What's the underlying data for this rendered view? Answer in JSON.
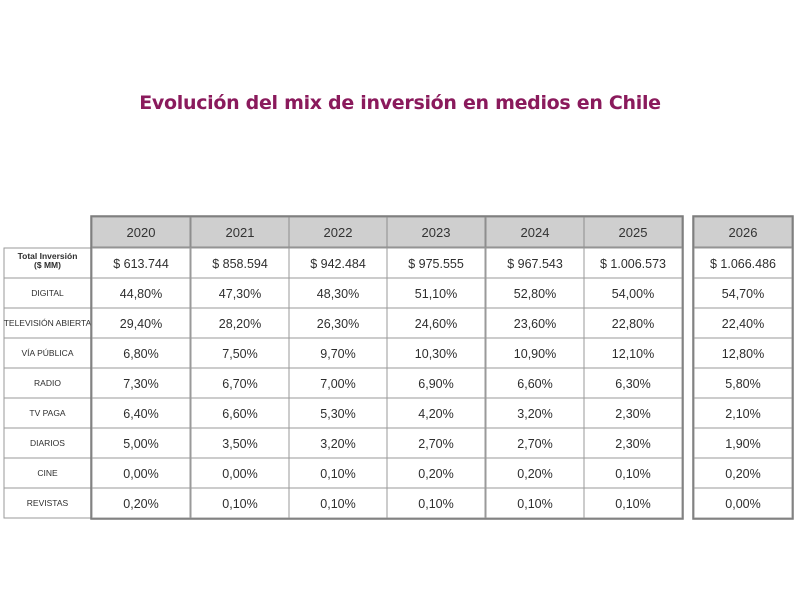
{
  "title": "Evolución del mix de inversión en medios en Chile",
  "chart_data": {
    "type": "table",
    "title": "Evolución del mix de inversión en medios en Chile",
    "columns": [
      "2020",
      "2021",
      "2022",
      "2023",
      "2024",
      "2025",
      "2026"
    ],
    "total_row": {
      "label_lines": [
        "Total Inversión",
        "($ MM)"
      ],
      "values": [
        "$ 613.744",
        "$ 858.594",
        "$ 942.484",
        "$ 975.555",
        "$ 967.543",
        "$ 1.006.573",
        "$ 1.066.486"
      ]
    },
    "rows": [
      {
        "label": "DIGITAL",
        "values": [
          "44,80%",
          "47,30%",
          "48,30%",
          "51,10%",
          "52,80%",
          "54,00%",
          "54,70%"
        ]
      },
      {
        "label": "TELEVISIÓN ABIERTA",
        "values": [
          "29,40%",
          "28,20%",
          "26,30%",
          "24,60%",
          "23,60%",
          "22,80%",
          "22,40%"
        ]
      },
      {
        "label": "VÍA PÚBLICA",
        "values": [
          "6,80%",
          "7,50%",
          "9,70%",
          "10,30%",
          "10,90%",
          "12,10%",
          "12,80%"
        ]
      },
      {
        "label": "RADIO",
        "values": [
          "7,30%",
          "6,70%",
          "7,00%",
          "6,90%",
          "6,60%",
          "6,30%",
          "5,80%"
        ]
      },
      {
        "label": "TV PAGA",
        "values": [
          "6,40%",
          "6,60%",
          "5,30%",
          "4,20%",
          "3,20%",
          "2,30%",
          "2,10%"
        ]
      },
      {
        "label": "DIARIOS",
        "values": [
          "5,00%",
          "3,50%",
          "3,20%",
          "2,70%",
          "2,70%",
          "2,30%",
          "1,90%"
        ]
      },
      {
        "label": "CINE",
        "values": [
          "0,00%",
          "0,00%",
          "0,10%",
          "0,20%",
          "0,20%",
          "0,10%",
          "0,20%"
        ]
      },
      {
        "label": "REVISTAS",
        "values": [
          "0,20%",
          "0,10%",
          "0,10%",
          "0,10%",
          "0,10%",
          "0,10%",
          "0,00%"
        ]
      }
    ]
  }
}
